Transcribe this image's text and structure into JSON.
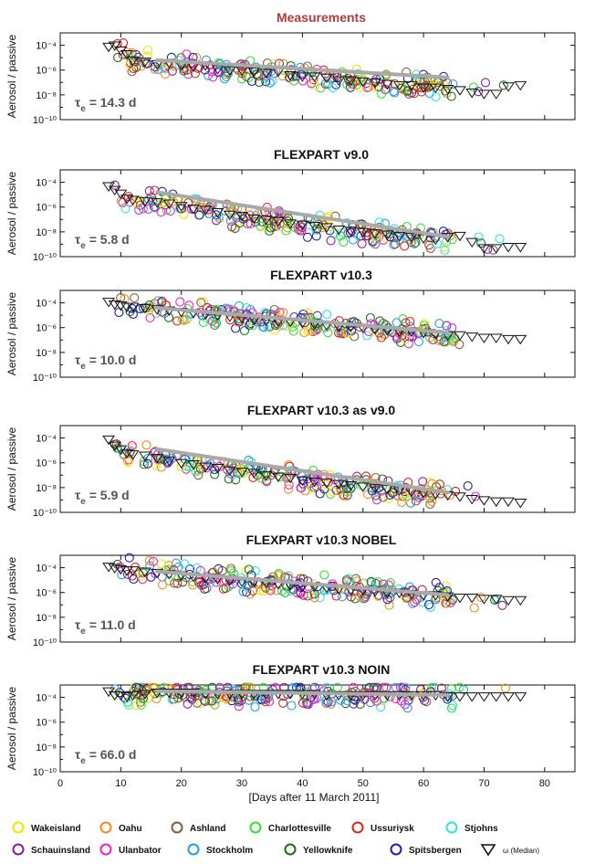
{
  "chart_data": {
    "type": "scatter",
    "xlabel": "[Days after 11 March 2011]",
    "ylabel": "Aerosol / passive",
    "xlim": [
      0,
      85
    ],
    "xticks": [
      "0",
      "10",
      "20",
      "30",
      "40",
      "50",
      "60",
      "70",
      "80"
    ],
    "ylim_log10": [
      -10,
      -3
    ],
    "yticks": [
      "10⁻⁴",
      "10⁻⁶",
      "10⁻⁸",
      "10⁻¹⁰"
    ],
    "panels": [
      {
        "title": "Measurements",
        "title_color": "#b23a3a",
        "tau_label": "= 14.3 d",
        "fit_line": {
          "x": [
            16,
            64
          ],
          "y": [
            -5.2,
            -6.6
          ]
        },
        "median_x": [
          8,
          9,
          10,
          11,
          12,
          14,
          16,
          18,
          20,
          22,
          24,
          26,
          28,
          30,
          32,
          34,
          36,
          38,
          40,
          42,
          44,
          46,
          48,
          50,
          52,
          54,
          56,
          58,
          60,
          62,
          64,
          66,
          68,
          70,
          72,
          74,
          76
        ],
        "median_y": [
          -4.1,
          -4.0,
          -4.4,
          -4.7,
          -5.2,
          -5.3,
          -5.5,
          -5.4,
          -5.6,
          -5.7,
          -5.6,
          -5.9,
          -6.0,
          -6.0,
          -6.1,
          -6.2,
          -6.1,
          -6.4,
          -6.5,
          -6.5,
          -6.6,
          -6.8,
          -6.8,
          -6.9,
          -7.0,
          -7.1,
          -7.2,
          -7.2,
          -7.4,
          -7.4,
          -7.5,
          -7.6,
          -7.8,
          -7.9,
          -7.9,
          -7.3,
          -7.2
        ]
      },
      {
        "title": "FLEXPART v9.0",
        "title_color": "#111111",
        "tau_label": "= 5.8 d",
        "fit_line": {
          "x": [
            16,
            64
          ],
          "y": [
            -4.8,
            -8.4
          ]
        },
        "median_x": [
          8,
          9,
          10,
          11,
          12,
          14,
          16,
          18,
          20,
          22,
          24,
          26,
          28,
          30,
          32,
          34,
          36,
          38,
          40,
          42,
          44,
          46,
          48,
          50,
          52,
          54,
          56,
          58,
          60,
          62,
          64,
          66,
          68,
          70,
          72,
          74,
          76
        ],
        "median_y": [
          -4.3,
          -4.6,
          -4.9,
          -5.3,
          -5.4,
          -5.5,
          -5.6,
          -5.7,
          -5.9,
          -6.1,
          -6.2,
          -6.4,
          -6.6,
          -6.7,
          -6.9,
          -7.0,
          -7.1,
          -7.3,
          -7.4,
          -7.5,
          -7.6,
          -7.8,
          -7.9,
          -8.0,
          -8.1,
          -8.2,
          -8.3,
          -8.4,
          -8.5,
          -8.6,
          -8.4,
          -8.3,
          -8.8,
          -9.3,
          -9.3,
          -9.2,
          -9.2
        ]
      },
      {
        "title": "FLEXPART v10.3",
        "title_color": "#111111",
        "tau_label": "= 10.0 d",
        "fit_line": {
          "x": [
            16,
            64
          ],
          "y": [
            -4.4,
            -6.4
          ]
        },
        "median_x": [
          8,
          9,
          10,
          11,
          12,
          14,
          16,
          18,
          20,
          22,
          24,
          26,
          28,
          30,
          32,
          34,
          36,
          38,
          40,
          42,
          44,
          46,
          48,
          50,
          52,
          54,
          56,
          58,
          60,
          62,
          64,
          66,
          68,
          70,
          72,
          74,
          76
        ],
        "median_y": [
          -3.9,
          -4.1,
          -4.2,
          -4.3,
          -4.3,
          -4.4,
          -4.5,
          -4.6,
          -4.7,
          -4.8,
          -4.9,
          -5.0,
          -5.1,
          -5.2,
          -5.3,
          -5.4,
          -5.5,
          -5.5,
          -5.6,
          -5.7,
          -5.8,
          -5.9,
          -5.9,
          -6.0,
          -6.1,
          -6.2,
          -6.3,
          -6.3,
          -6.4,
          -6.5,
          -6.6,
          -6.6,
          -6.7,
          -6.8,
          -6.8,
          -6.9,
          -6.9
        ]
      },
      {
        "title": "FLEXPART v10.3   as v9.0",
        "title_color": "#111111",
        "tau_label": "= 5.9 d",
        "fit_line": {
          "x": [
            16,
            64
          ],
          "y": [
            -4.9,
            -8.4
          ]
        },
        "median_x": [
          8,
          9,
          10,
          11,
          12,
          14,
          16,
          18,
          20,
          22,
          24,
          26,
          28,
          30,
          32,
          34,
          36,
          38,
          40,
          42,
          44,
          46,
          48,
          50,
          52,
          54,
          56,
          58,
          60,
          62,
          64,
          66,
          68,
          70,
          72,
          74,
          76
        ],
        "median_y": [
          -4.1,
          -4.6,
          -4.9,
          -5.2,
          -5.3,
          -5.4,
          -5.6,
          -5.8,
          -6.0,
          -6.1,
          -6.3,
          -6.4,
          -6.6,
          -6.7,
          -6.8,
          -7.0,
          -7.1,
          -7.2,
          -7.4,
          -7.5,
          -7.6,
          -7.7,
          -7.8,
          -7.9,
          -8.0,
          -8.1,
          -8.2,
          -8.3,
          -8.4,
          -8.5,
          -8.6,
          -8.7,
          -8.9,
          -9.0,
          -9.1,
          -9.1,
          -9.2
        ]
      },
      {
        "title": "FLEXPART v10.3   NOBEL",
        "title_color": "#111111",
        "tau_label": "= 11.0 d",
        "fit_line": {
          "x": [
            16,
            64
          ],
          "y": [
            -4.3,
            -6.2
          ]
        },
        "median_x": [
          8,
          9,
          10,
          11,
          12,
          14,
          16,
          18,
          20,
          22,
          24,
          26,
          28,
          30,
          32,
          34,
          36,
          38,
          40,
          42,
          44,
          46,
          48,
          50,
          52,
          54,
          56,
          58,
          60,
          62,
          64,
          66,
          68,
          70,
          72,
          74,
          76
        ],
        "median_y": [
          -3.9,
          -4.0,
          -4.1,
          -4.2,
          -4.2,
          -4.3,
          -4.4,
          -4.5,
          -4.6,
          -4.7,
          -4.8,
          -4.9,
          -5.0,
          -5.1,
          -5.1,
          -5.2,
          -5.3,
          -5.4,
          -5.5,
          -5.5,
          -5.6,
          -5.7,
          -5.8,
          -5.8,
          -5.9,
          -6.0,
          -6.0,
          -6.1,
          -6.2,
          -6.2,
          -6.3,
          -6.4,
          -6.4,
          -6.5,
          -6.5,
          -6.6,
          -6.6
        ]
      },
      {
        "title": "FLEXPART v10.3   NOIN",
        "title_color": "#111111",
        "tau_label": "= 66.0 d",
        "fit_line": {
          "x": [
            16,
            64
          ],
          "y": [
            -3.5,
            -3.8
          ]
        },
        "median_x": [
          8,
          9,
          10,
          11,
          12,
          14,
          16,
          18,
          20,
          22,
          24,
          26,
          28,
          30,
          32,
          34,
          36,
          38,
          40,
          42,
          44,
          46,
          48,
          50,
          52,
          54,
          56,
          58,
          60,
          62,
          64,
          66,
          68,
          70,
          72,
          74,
          76
        ],
        "median_y": [
          -3.5,
          -3.8,
          -3.8,
          -3.9,
          -3.8,
          -3.7,
          -3.6,
          -3.6,
          -3.6,
          -3.6,
          -3.7,
          -3.7,
          -3.7,
          -3.7,
          -3.7,
          -3.7,
          -3.7,
          -3.7,
          -3.7,
          -3.7,
          -3.8,
          -3.8,
          -3.8,
          -3.8,
          -3.8,
          -3.8,
          -3.8,
          -3.8,
          -3.8,
          -3.8,
          -3.9,
          -3.9,
          -3.9,
          -3.9,
          -3.9,
          -3.9,
          -3.9
        ]
      }
    ],
    "stations": [
      {
        "name": "Wakeisland",
        "color": "#f5e400"
      },
      {
        "name": "Oahu",
        "color": "#f08c1e"
      },
      {
        "name": "Ashland",
        "color": "#8b5a3c"
      },
      {
        "name": "Charlottesville",
        "color": "#33e133"
      },
      {
        "name": "Ussuriysk",
        "color": "#e0201c"
      },
      {
        "name": "Stjohns",
        "color": "#29e6e6"
      },
      {
        "name": "Schauinsland",
        "color": "#8c1aa8"
      },
      {
        "name": "Ulanbator",
        "color": "#f21ed2"
      },
      {
        "name": "Stockholm",
        "color": "#2a9ae8"
      },
      {
        "name": "Yellowknife",
        "color": "#1a6e1a"
      },
      {
        "name": "Spitsbergen",
        "color": "#1f1fa8"
      }
    ],
    "median_legend": {
      "label": "ω (Median)",
      "symbol": "triangle-down"
    },
    "fit_line_color": "#a9a9a9",
    "tau_symbol": "τ",
    "tau_subscript": "e"
  }
}
